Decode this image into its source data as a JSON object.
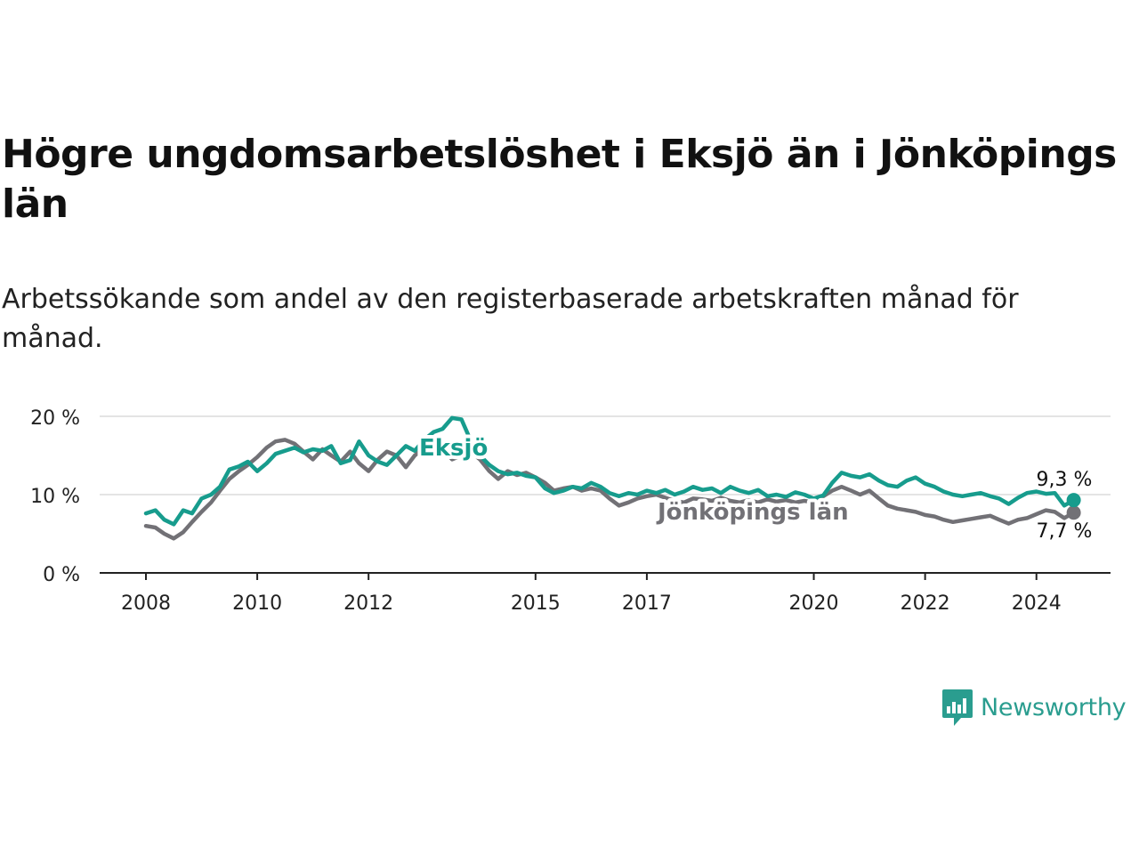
{
  "title": "Högre ungdomsarbetslöshet i Eksjö än i Jönköpings län",
  "subtitle": "Arbetssökande som andel av den registerbaserade arbetskraften månad för månad.",
  "brand": {
    "name": "Newsworthy",
    "color": "#2a9d8f"
  },
  "chart_data": {
    "type": "line",
    "title": "Högre ungdomsarbetslöshet i Eksjö än i Jönköpings län",
    "subtitle": "Arbetssökande som andel av den registerbaserade arbetskraften månad för månad.",
    "xlabel": "",
    "ylabel": "",
    "xlim": [
      2008.0,
      2025.3
    ],
    "ylim": [
      0,
      20
    ],
    "grid": true,
    "y_ticks": [
      0,
      10,
      20
    ],
    "y_tick_labels": [
      "0 %",
      "10 %",
      "20 %"
    ],
    "x_ticks": [
      2008,
      2010,
      2012,
      2015,
      2017,
      2020,
      2022,
      2024
    ],
    "x_tick_labels": [
      "2008",
      "2010",
      "2012",
      "2015",
      "2017",
      "2020",
      "2022",
      "2024"
    ],
    "series": [
      {
        "name": "Jönköpings län",
        "color": "#727176",
        "label": "Jönköpings län",
        "end_label": "7,7 %",
        "points": [
          [
            2008.0,
            6.0
          ],
          [
            2008.17,
            5.8
          ],
          [
            2008.33,
            5.0
          ],
          [
            2008.5,
            4.4
          ],
          [
            2008.67,
            5.2
          ],
          [
            2008.83,
            6.5
          ],
          [
            2009.0,
            7.8
          ],
          [
            2009.17,
            9.0
          ],
          [
            2009.33,
            10.5
          ],
          [
            2009.5,
            12.0
          ],
          [
            2009.67,
            13.0
          ],
          [
            2009.83,
            13.8
          ],
          [
            2010.0,
            14.8
          ],
          [
            2010.17,
            16.0
          ],
          [
            2010.33,
            16.8
          ],
          [
            2010.5,
            17.0
          ],
          [
            2010.67,
            16.5
          ],
          [
            2010.83,
            15.5
          ],
          [
            2011.0,
            14.5
          ],
          [
            2011.17,
            15.8
          ],
          [
            2011.33,
            15.0
          ],
          [
            2011.5,
            14.2
          ],
          [
            2011.67,
            15.5
          ],
          [
            2011.83,
            14.0
          ],
          [
            2012.0,
            13.0
          ],
          [
            2012.17,
            14.5
          ],
          [
            2012.33,
            15.5
          ],
          [
            2012.5,
            15.0
          ],
          [
            2012.67,
            13.5
          ],
          [
            2012.83,
            15.0
          ],
          [
            2013.0,
            16.0
          ],
          [
            2013.17,
            17.0
          ],
          [
            2013.33,
            16.0
          ],
          [
            2013.5,
            14.5
          ],
          [
            2013.67,
            15.0
          ],
          [
            2013.83,
            15.5
          ],
          [
            2014.0,
            14.5
          ],
          [
            2014.17,
            13.0
          ],
          [
            2014.33,
            12.0
          ],
          [
            2014.5,
            13.0
          ],
          [
            2014.67,
            12.5
          ],
          [
            2014.83,
            12.8
          ],
          [
            2015.0,
            12.2
          ],
          [
            2015.17,
            11.5
          ],
          [
            2015.33,
            10.5
          ],
          [
            2015.5,
            10.8
          ],
          [
            2015.67,
            11.0
          ],
          [
            2015.83,
            10.5
          ],
          [
            2016.0,
            10.8
          ],
          [
            2016.17,
            10.5
          ],
          [
            2016.33,
            9.5
          ],
          [
            2016.5,
            8.6
          ],
          [
            2016.67,
            9.0
          ],
          [
            2016.83,
            9.5
          ],
          [
            2017.0,
            9.8
          ],
          [
            2017.17,
            10.0
          ],
          [
            2017.33,
            9.6
          ],
          [
            2017.5,
            9.2
          ],
          [
            2017.67,
            9.0
          ],
          [
            2017.83,
            9.5
          ],
          [
            2018.0,
            9.4
          ],
          [
            2018.17,
            9.2
          ],
          [
            2018.33,
            9.6
          ],
          [
            2018.5,
            9.2
          ],
          [
            2018.67,
            9.0
          ],
          [
            2018.83,
            9.3
          ],
          [
            2019.0,
            9.0
          ],
          [
            2019.17,
            9.4
          ],
          [
            2019.33,
            9.1
          ],
          [
            2019.5,
            9.3
          ],
          [
            2019.67,
            9.0
          ],
          [
            2019.83,
            9.2
          ],
          [
            2020.0,
            9.0
          ],
          [
            2020.17,
            9.8
          ],
          [
            2020.33,
            10.5
          ],
          [
            2020.5,
            11.0
          ],
          [
            2020.67,
            10.5
          ],
          [
            2020.83,
            10.0
          ],
          [
            2021.0,
            10.5
          ],
          [
            2021.17,
            9.5
          ],
          [
            2021.33,
            8.6
          ],
          [
            2021.5,
            8.2
          ],
          [
            2021.67,
            8.0
          ],
          [
            2021.83,
            7.8
          ],
          [
            2022.0,
            7.4
          ],
          [
            2022.17,
            7.2
          ],
          [
            2022.33,
            6.8
          ],
          [
            2022.5,
            6.5
          ],
          [
            2022.67,
            6.7
          ],
          [
            2022.83,
            6.9
          ],
          [
            2023.0,
            7.1
          ],
          [
            2023.17,
            7.3
          ],
          [
            2023.33,
            6.8
          ],
          [
            2023.5,
            6.3
          ],
          [
            2023.67,
            6.8
          ],
          [
            2023.83,
            7.0
          ],
          [
            2024.0,
            7.5
          ],
          [
            2024.17,
            8.0
          ],
          [
            2024.33,
            7.8
          ],
          [
            2024.5,
            7.0
          ],
          [
            2024.67,
            7.7
          ]
        ]
      },
      {
        "name": "Eksjö",
        "color": "#179c8d",
        "label": "Eksjö",
        "end_label": "9,3 %",
        "points": [
          [
            2008.0,
            7.6
          ],
          [
            2008.17,
            8.0
          ],
          [
            2008.33,
            6.8
          ],
          [
            2008.5,
            6.2
          ],
          [
            2008.67,
            8.0
          ],
          [
            2008.83,
            7.6
          ],
          [
            2009.0,
            9.5
          ],
          [
            2009.17,
            10.0
          ],
          [
            2009.33,
            11.0
          ],
          [
            2009.5,
            13.2
          ],
          [
            2009.67,
            13.6
          ],
          [
            2009.83,
            14.2
          ],
          [
            2010.0,
            13.0
          ],
          [
            2010.17,
            14.0
          ],
          [
            2010.33,
            15.2
          ],
          [
            2010.5,
            15.6
          ],
          [
            2010.67,
            16.0
          ],
          [
            2010.83,
            15.4
          ],
          [
            2011.0,
            15.8
          ],
          [
            2011.17,
            15.6
          ],
          [
            2011.33,
            16.2
          ],
          [
            2011.5,
            14.0
          ],
          [
            2011.67,
            14.4
          ],
          [
            2011.83,
            16.8
          ],
          [
            2012.0,
            15.0
          ],
          [
            2012.17,
            14.2
          ],
          [
            2012.33,
            13.8
          ],
          [
            2012.5,
            15.0
          ],
          [
            2012.67,
            16.2
          ],
          [
            2012.83,
            15.6
          ],
          [
            2013.0,
            17.0
          ],
          [
            2013.17,
            18.0
          ],
          [
            2013.33,
            18.4
          ],
          [
            2013.5,
            19.8
          ],
          [
            2013.67,
            19.6
          ],
          [
            2013.83,
            17.0
          ],
          [
            2014.0,
            15.0
          ],
          [
            2014.17,
            13.8
          ],
          [
            2014.33,
            13.0
          ],
          [
            2014.5,
            12.6
          ],
          [
            2014.67,
            12.8
          ],
          [
            2014.83,
            12.4
          ],
          [
            2015.0,
            12.2
          ],
          [
            2015.17,
            10.8
          ],
          [
            2015.33,
            10.2
          ],
          [
            2015.5,
            10.5
          ],
          [
            2015.67,
            11.0
          ],
          [
            2015.83,
            10.8
          ],
          [
            2016.0,
            11.5
          ],
          [
            2016.17,
            11.0
          ],
          [
            2016.33,
            10.2
          ],
          [
            2016.5,
            9.8
          ],
          [
            2016.67,
            10.2
          ],
          [
            2016.83,
            10.0
          ],
          [
            2017.0,
            10.5
          ],
          [
            2017.17,
            10.2
          ],
          [
            2017.33,
            10.6
          ],
          [
            2017.5,
            10.0
          ],
          [
            2017.67,
            10.4
          ],
          [
            2017.83,
            11.0
          ],
          [
            2018.0,
            10.6
          ],
          [
            2018.17,
            10.8
          ],
          [
            2018.33,
            10.2
          ],
          [
            2018.5,
            11.0
          ],
          [
            2018.67,
            10.5
          ],
          [
            2018.83,
            10.2
          ],
          [
            2019.0,
            10.6
          ],
          [
            2019.17,
            9.8
          ],
          [
            2019.33,
            10.0
          ],
          [
            2019.5,
            9.7
          ],
          [
            2019.67,
            10.3
          ],
          [
            2019.83,
            10.0
          ],
          [
            2020.0,
            9.5
          ],
          [
            2020.17,
            9.9
          ],
          [
            2020.33,
            11.5
          ],
          [
            2020.5,
            12.8
          ],
          [
            2020.67,
            12.4
          ],
          [
            2020.83,
            12.2
          ],
          [
            2021.0,
            12.6
          ],
          [
            2021.17,
            11.8
          ],
          [
            2021.33,
            11.2
          ],
          [
            2021.5,
            11.0
          ],
          [
            2021.67,
            11.8
          ],
          [
            2021.83,
            12.2
          ],
          [
            2022.0,
            11.4
          ],
          [
            2022.17,
            11.0
          ],
          [
            2022.33,
            10.4
          ],
          [
            2022.5,
            10.0
          ],
          [
            2022.67,
            9.8
          ],
          [
            2022.83,
            10.0
          ],
          [
            2023.0,
            10.2
          ],
          [
            2023.17,
            9.8
          ],
          [
            2023.33,
            9.5
          ],
          [
            2023.5,
            8.8
          ],
          [
            2023.67,
            9.6
          ],
          [
            2023.83,
            10.2
          ],
          [
            2024.0,
            10.4
          ],
          [
            2024.17,
            10.1
          ],
          [
            2024.33,
            10.2
          ],
          [
            2024.5,
            8.6
          ],
          [
            2024.67,
            9.3
          ]
        ]
      }
    ]
  }
}
